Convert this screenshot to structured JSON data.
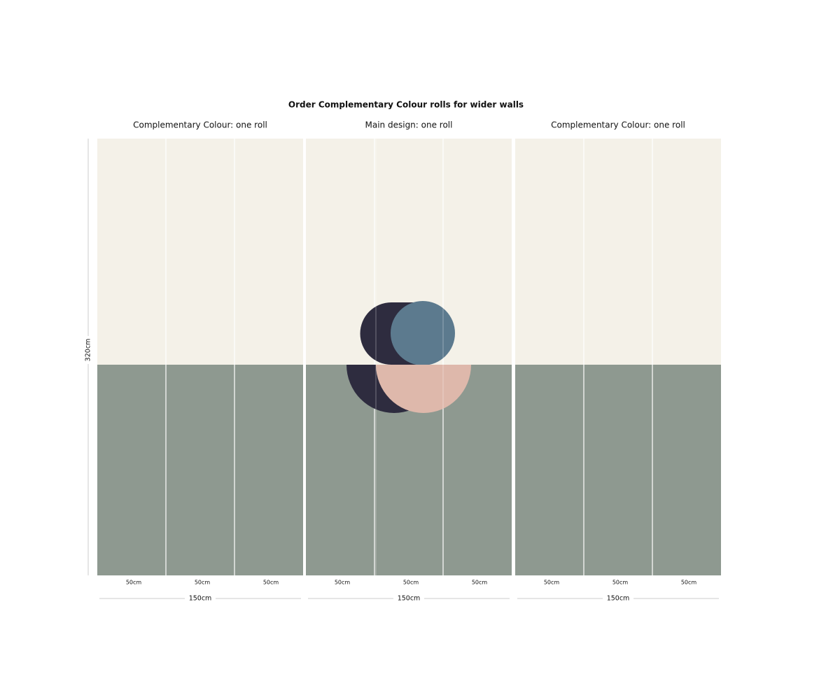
{
  "title": "Order Complementary Colour rolls for wider walls",
  "height": "320cm",
  "panels": [
    {
      "label": "Complementary Colour: one roll",
      "strips": [
        "50cm",
        "50cm",
        "50cm"
      ],
      "width": "150cm"
    },
    {
      "label": "Main design: one roll",
      "strips": [
        "50cm",
        "50cm",
        "50cm"
      ],
      "width": "150cm"
    },
    {
      "label": "Complementary Colour: one roll",
      "strips": [
        "50cm",
        "50cm",
        "50cm"
      ],
      "width": "150cm"
    }
  ]
}
